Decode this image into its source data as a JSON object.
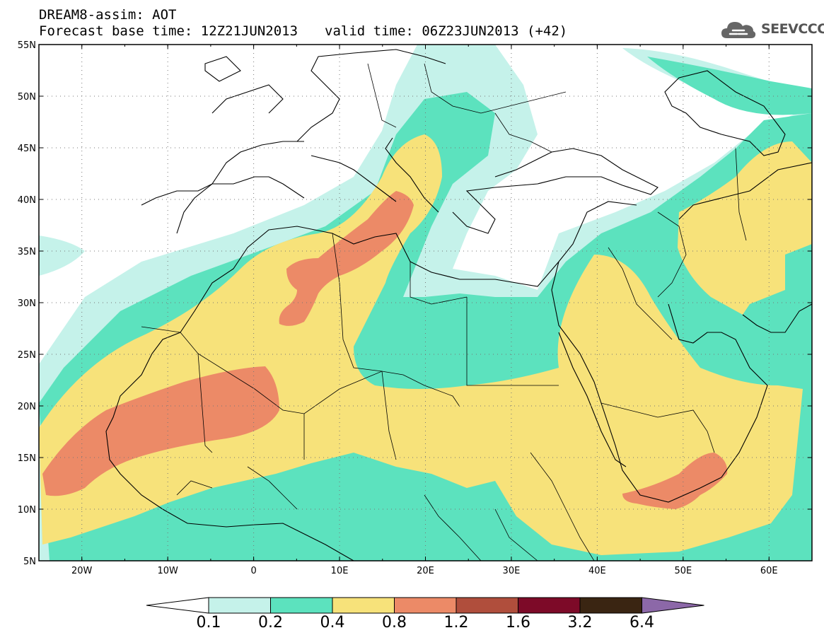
{
  "header": {
    "title_line1": "DREAM8-assim: AOT",
    "base_time": "Forecast base time: 12Z21JUN2013",
    "valid_time": "valid time: 06Z23JUN2013 (+42)",
    "logo_text": "SEEVCCC",
    "logo_icon": "cloud-icon"
  },
  "map": {
    "lon_range": [
      -25,
      65
    ],
    "lat_range": [
      5,
      55
    ],
    "lat_ticks": [
      "5N",
      "10N",
      "15N",
      "20N",
      "25N",
      "30N",
      "35N",
      "40N",
      "45N",
      "50N",
      "55N"
    ],
    "lon_ticks": [
      "20W",
      "10W",
      "0",
      "10E",
      "20E",
      "30E",
      "40E",
      "50E",
      "60E"
    ]
  },
  "colorbar": {
    "labels": [
      "0.1",
      "0.2",
      "0.4",
      "0.8",
      "1.2",
      "1.6",
      "3.2",
      "6.4"
    ],
    "colors": [
      "#ffffff",
      "#c5f2ea",
      "#5ce2be",
      "#f7e27a",
      "#ec8a67",
      "#b04e3c",
      "#7d0a28",
      "#3a2512",
      "#8c68a8"
    ]
  }
}
